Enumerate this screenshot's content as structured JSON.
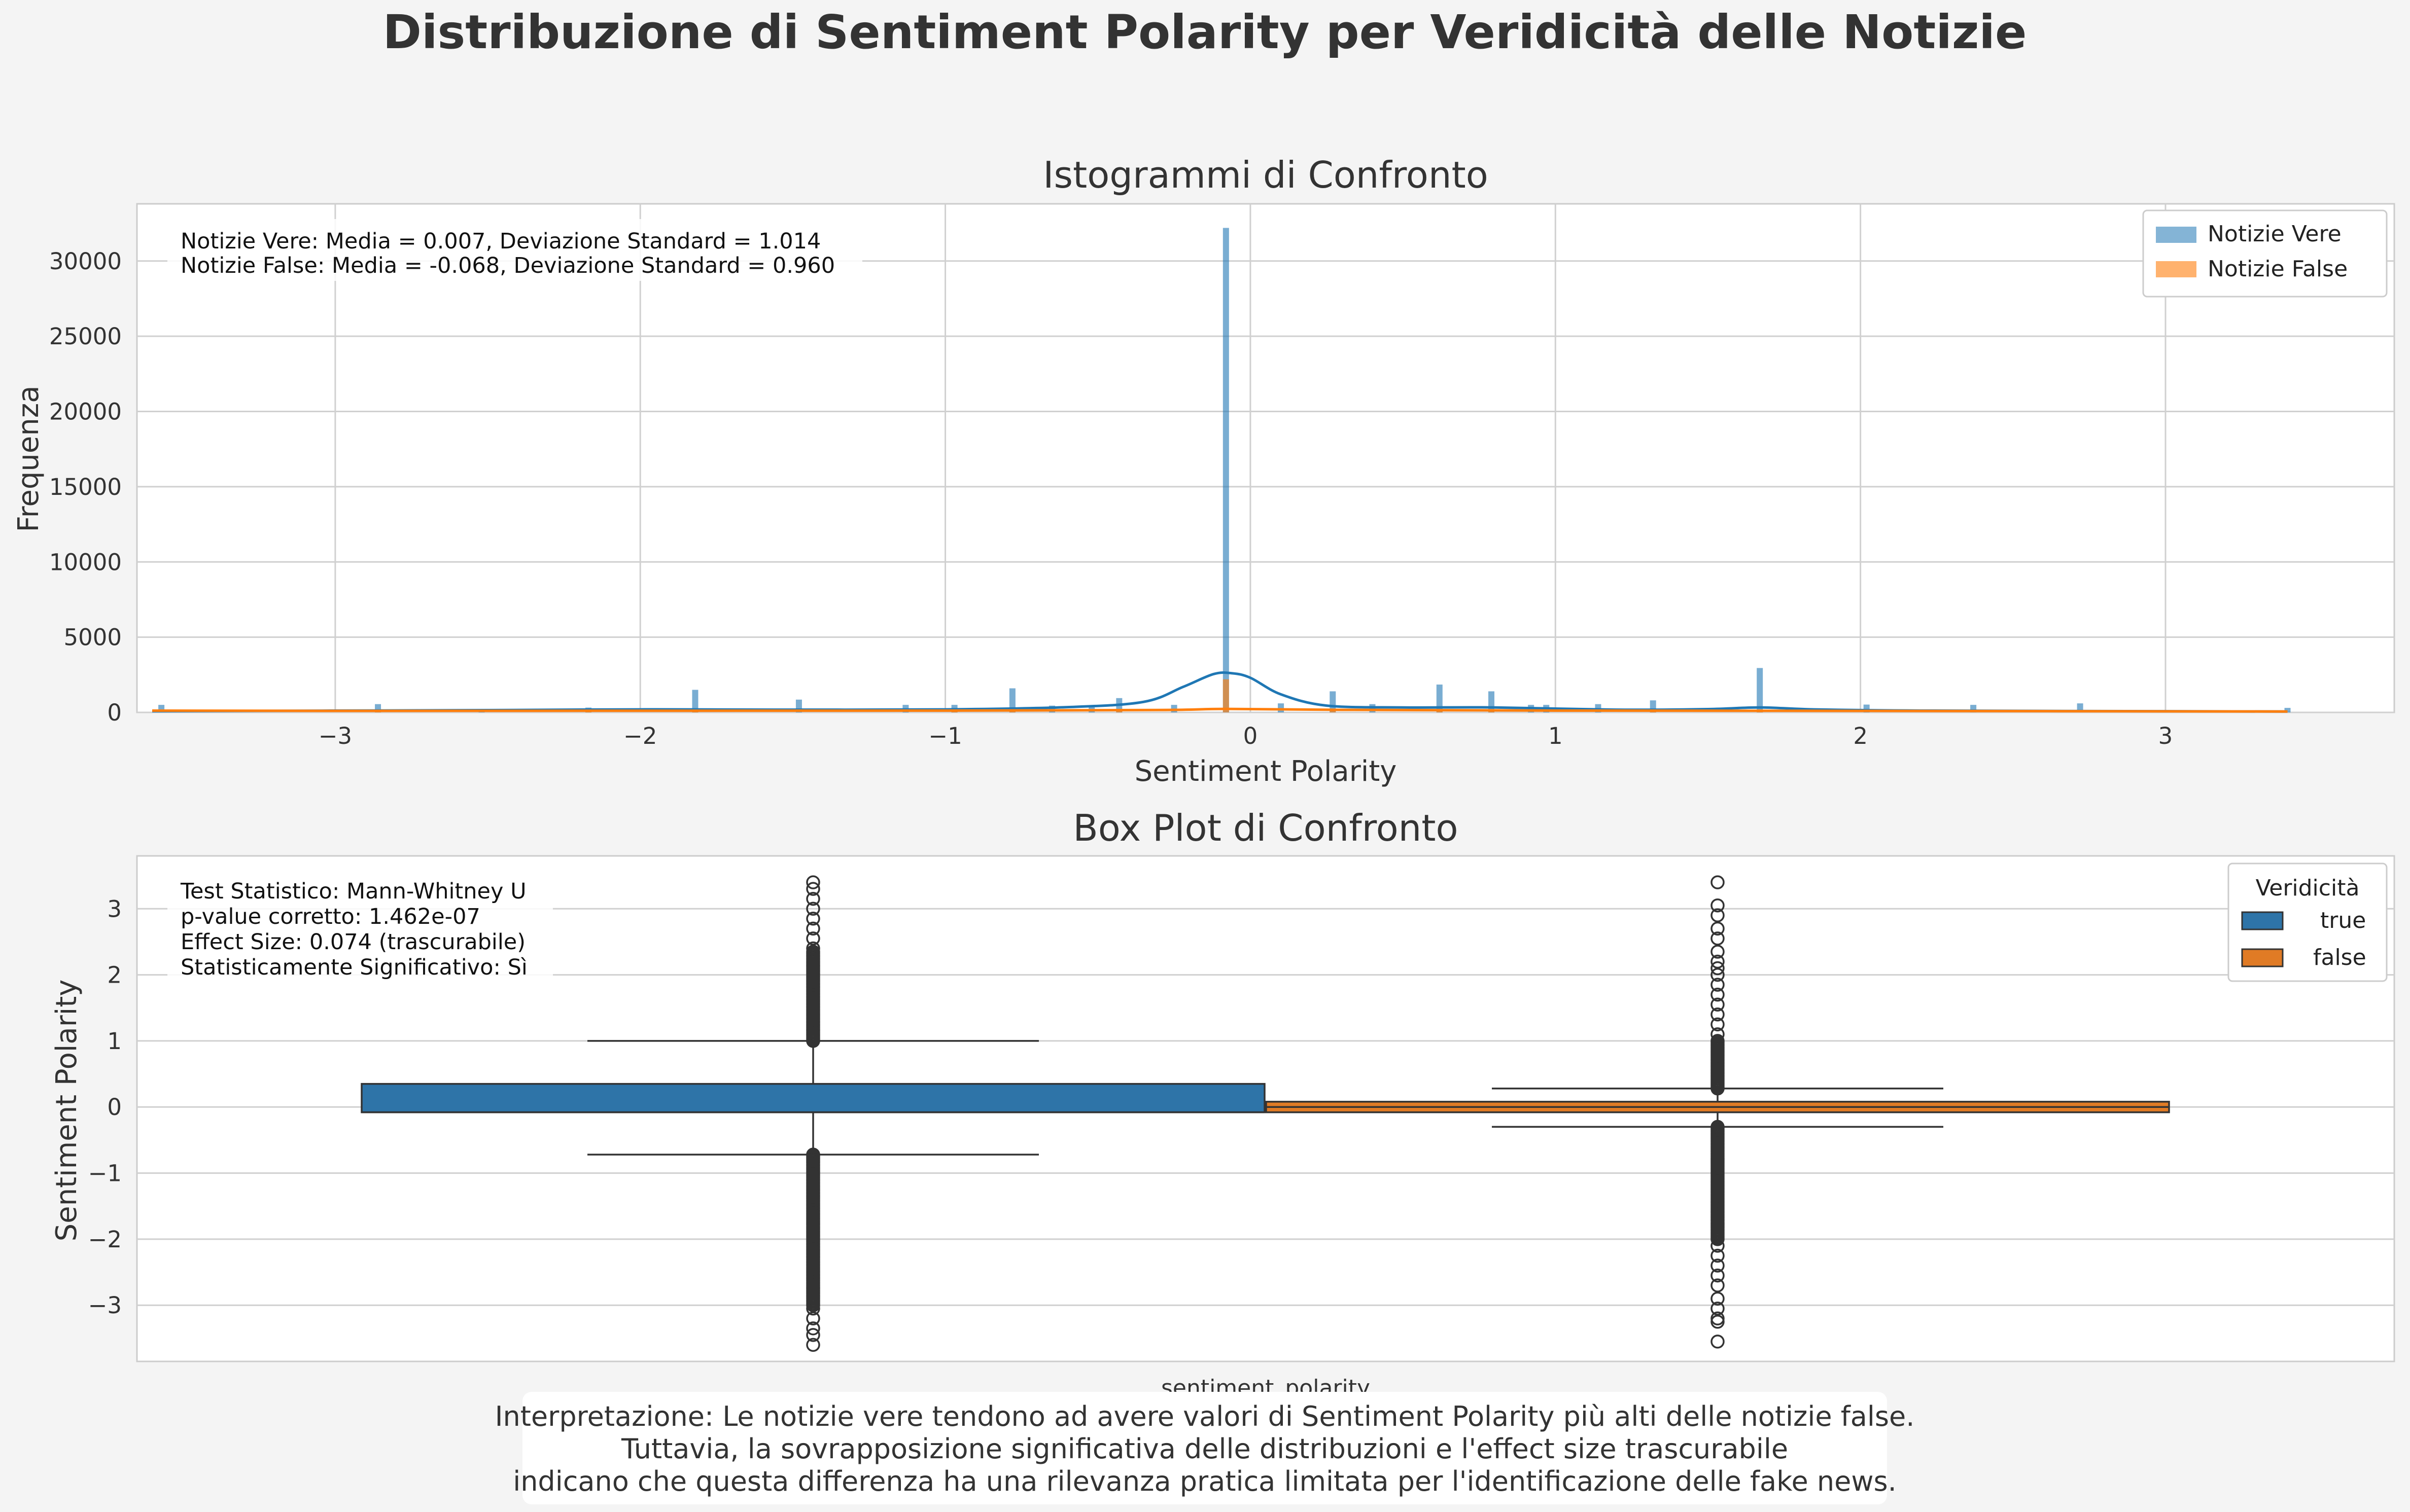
{
  "figure": {
    "title": "Distribuzione di Sentiment Polarity per Veridicità delle Notizie",
    "interpretation": [
      "Interpretazione: Le notizie vere tendono ad avere valori di Sentiment Polarity più alti delle notizie false.",
      "Tuttavia, la sovrapposizione significativa delle distribuzioni e l'effect size trascurabile",
      "indicano che questa differenza ha una rilevanza pratica limitata per l'identificazione delle fake news."
    ],
    "colors": {
      "true": "#1f77b4",
      "false": "#ff7f0e",
      "true_box": "#2e74a8",
      "false_box": "#e07b25"
    }
  },
  "chart_data": [
    {
      "type": "histogram",
      "title": "Istogrammi di Confronto",
      "xlabel": "Sentiment Polarity",
      "ylabel": "Frequenza",
      "xlim": [
        -3.65,
        3.75
      ],
      "ylim": [
        0,
        33800
      ],
      "xticks": [
        -3,
        -2,
        -1,
        0,
        1,
        2,
        3
      ],
      "xtick_labels": [
        "−3",
        "−2",
        "−1",
        "0",
        "1",
        "2",
        "3"
      ],
      "yticks": [
        0,
        5000,
        10000,
        15000,
        20000,
        25000,
        30000
      ],
      "ytick_labels": [
        "0",
        "5000",
        "10000",
        "15000",
        "20000",
        "25000",
        "30000"
      ],
      "grid": true,
      "legend_position": "top-right",
      "stats_text": [
        "Notizie Vere: Media = 0.007, Deviazione Standard = 1.014",
        "Notizie False: Media = -0.068, Deviazione Standard = 0.960"
      ],
      "series": [
        {
          "name": "Notizie Vere",
          "bars": [
            [
              -3.57,
              500
            ],
            [
              -2.86,
              550
            ],
            [
              -2.52,
              120
            ],
            [
              -2.17,
              320
            ],
            [
              -1.82,
              1500
            ],
            [
              -1.48,
              850
            ],
            [
              -1.13,
              500
            ],
            [
              -0.97,
              500
            ],
            [
              -0.78,
              1600
            ],
            [
              -0.65,
              450
            ],
            [
              -0.52,
              450
            ],
            [
              -0.43,
              950
            ],
            [
              -0.25,
              500
            ],
            [
              -0.08,
              32200
            ],
            [
              0.1,
              600
            ],
            [
              0.27,
              1400
            ],
            [
              0.4,
              550
            ],
            [
              0.62,
              1850
            ],
            [
              0.79,
              1400
            ],
            [
              0.92,
              500
            ],
            [
              0.97,
              500
            ],
            [
              1.14,
              550
            ],
            [
              1.32,
              800
            ],
            [
              1.67,
              2950
            ],
            [
              2.02,
              520
            ],
            [
              2.37,
              500
            ],
            [
              2.72,
              600
            ],
            [
              3.4,
              300
            ]
          ],
          "kde": [
            [
              -3.6,
              80
            ],
            [
              -2.5,
              150
            ],
            [
              -2.0,
              200
            ],
            [
              -1.5,
              180
            ],
            [
              -1.0,
              200
            ],
            [
              -0.6,
              350
            ],
            [
              -0.35,
              700
            ],
            [
              -0.22,
              1700
            ],
            [
              -0.12,
              2550
            ],
            [
              -0.06,
              2600
            ],
            [
              0.0,
              2300
            ],
            [
              0.1,
              1200
            ],
            [
              0.25,
              450
            ],
            [
              0.5,
              330
            ],
            [
              0.8,
              330
            ],
            [
              1.2,
              180
            ],
            [
              1.5,
              220
            ],
            [
              1.67,
              330
            ],
            [
              1.85,
              200
            ],
            [
              2.2,
              120
            ],
            [
              3.0,
              80
            ],
            [
              3.4,
              60
            ]
          ]
        },
        {
          "name": "Notizie False",
          "bars": [
            [
              -3.57,
              150
            ],
            [
              -2.86,
              100
            ],
            [
              -2.17,
              80
            ],
            [
              -1.82,
              200
            ],
            [
              -0.97,
              100
            ],
            [
              -0.78,
              200
            ],
            [
              -0.43,
              150
            ],
            [
              -0.08,
              2200
            ],
            [
              0.27,
              200
            ],
            [
              0.62,
              200
            ],
            [
              0.79,
              150
            ],
            [
              1.32,
              100
            ],
            [
              1.67,
              200
            ],
            [
              2.72,
              80
            ]
          ],
          "kde": [
            [
              -3.6,
              120
            ],
            [
              -3.0,
              100
            ],
            [
              -2.0,
              110
            ],
            [
              -1.0,
              120
            ],
            [
              -0.3,
              160
            ],
            [
              -0.08,
              230
            ],
            [
              0.3,
              170
            ],
            [
              1.0,
              120
            ],
            [
              2.0,
              100
            ],
            [
              3.4,
              60
            ]
          ]
        }
      ]
    },
    {
      "type": "box",
      "title": "Box Plot di Confronto",
      "xlabel": "sentiment_polarity",
      "ylabel": "Sentiment Polarity",
      "ylim": [
        -3.85,
        3.8
      ],
      "yticks": [
        -3,
        -2,
        -1,
        0,
        1,
        2,
        3
      ],
      "ytick_labels": [
        "−3",
        "−2",
        "−1",
        "0",
        "1",
        "2",
        "3"
      ],
      "grid": true,
      "legend_title": "Veridicità",
      "legend_position": "top-right",
      "stats_text": [
        "Test Statistico: Mann-Whitney U",
        "p-value corretto: 1.462e-07",
        "Effect Size: 0.074 (trascurabile)",
        "Statisticamente Significativo: Sì"
      ],
      "series": [
        {
          "name": "true",
          "q1": -0.08,
          "median": -0.08,
          "q3": 0.35,
          "whisker_low": -0.72,
          "whisker_high": 1.0,
          "outliers_high_dense": [
            1.0,
            2.35
          ],
          "outliers_high_sparse": [
            2.4,
            2.55,
            2.7,
            2.85,
            3.0,
            3.15,
            3.3,
            3.4
          ],
          "outliers_low_dense": [
            -0.72,
            -3.0
          ],
          "outliers_low_sparse": [
            -3.05,
            -3.2,
            -3.35,
            -3.45,
            -3.6
          ]
        },
        {
          "name": "false",
          "q1": -0.08,
          "median": 0.0,
          "q3": 0.08,
          "whisker_low": -0.3,
          "whisker_high": 0.28,
          "outliers_high_dense": [
            0.28,
            1.0
          ],
          "outliers_high_sparse": [
            1.1,
            1.25,
            1.4,
            1.55,
            1.7,
            1.85,
            2.0,
            2.1,
            2.2,
            2.35,
            2.55,
            2.7,
            2.9,
            3.05,
            3.4
          ],
          "outliers_low_dense": [
            -0.3,
            -2.0
          ],
          "outliers_low_sparse": [
            -2.1,
            -2.25,
            -2.4,
            -2.55,
            -2.7,
            -2.9,
            -3.05,
            -3.2,
            -3.25,
            -3.55
          ]
        }
      ]
    }
  ]
}
